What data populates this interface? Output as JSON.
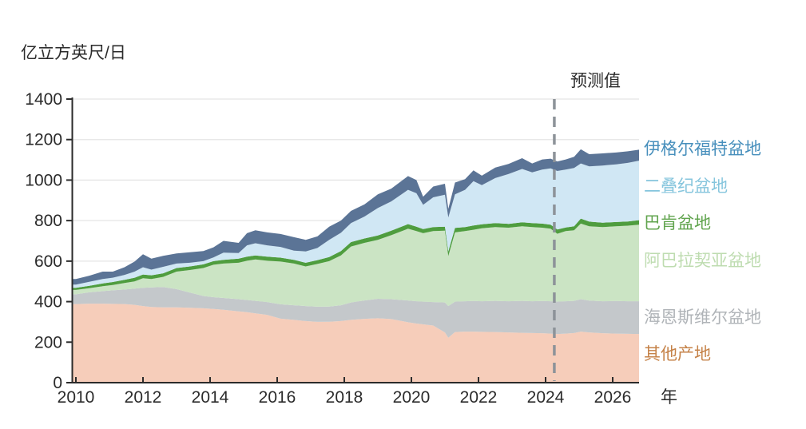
{
  "unit_label": "亿立方英尺/日",
  "forecast_label": "预测值",
  "x_axis_label": "年",
  "colors": {
    "axis": "#2b2b2b",
    "grid": "#e5e5e5",
    "forecast_line": "#8d9399",
    "background": "#ffffff"
  },
  "chart_data": {
    "type": "area",
    "stacked": true,
    "title": "",
    "unit_label": "亿立方英尺/日",
    "xlabel": "年",
    "ylabel": "",
    "ylim": [
      0,
      1400
    ],
    "yticks": [
      0,
      200,
      400,
      600,
      800,
      1000,
      1200,
      1400
    ],
    "xticks": [
      2010,
      2012,
      2014,
      2016,
      2018,
      2020,
      2022,
      2024,
      2026
    ],
    "xlim": [
      2009.88,
      2026.8
    ],
    "grid": true,
    "legend_position": "right",
    "forecast_divider_x": 2024.26,
    "forecast_annotation": "预测值",
    "x": [
      2010.0,
      2010.4,
      2010.8,
      2011.1,
      2011.45,
      2011.75,
      2012.0,
      2012.25,
      2012.6,
      2013.0,
      2013.4,
      2013.8,
      2014.1,
      2014.4,
      2014.85,
      2015.1,
      2015.35,
      2015.7,
      2016.1,
      2016.5,
      2016.85,
      2017.2,
      2017.55,
      2017.9,
      2018.2,
      2018.6,
      2019.0,
      2019.4,
      2019.9,
      2020.15,
      2020.35,
      2020.65,
      2021.0,
      2021.1,
      2021.3,
      2021.6,
      2021.85,
      2022.1,
      2022.5,
      2022.9,
      2023.3,
      2023.6,
      2023.9,
      2024.15,
      2024.35,
      2024.6,
      2024.85,
      2025.05,
      2025.3,
      2025.7,
      2026.1,
      2026.45,
      2026.8
    ],
    "series": [
      {
        "id": "other",
        "name": "其他产地",
        "color": "#f6cdba",
        "label_color": "#c58248",
        "legend_top": 432,
        "values": [
          388,
          390,
          390,
          389,
          388,
          384,
          378,
          374,
          372,
          372,
          370,
          367,
          364,
          360,
          352,
          348,
          342,
          335,
          316,
          310,
          304,
          300,
          301,
          304,
          310,
          315,
          318,
          314,
          298,
          292,
          288,
          282,
          248,
          222,
          250,
          252,
          252,
          251,
          250,
          248,
          246,
          245,
          244,
          242,
          240,
          242,
          245,
          252,
          248,
          244,
          242,
          241,
          240
        ]
      },
      {
        "id": "haynesville",
        "name": "海恩斯维尔盆地",
        "color": "#c4c8cb",
        "label_color": "#b0b4b8",
        "legend_top": 386,
        "values": [
          48,
          56,
          62,
          67,
          72,
          80,
          90,
          96,
          100,
          90,
          75,
          61,
          58,
          58,
          60,
          60,
          62,
          63,
          71,
          72,
          74,
          75,
          75,
          78,
          86,
          91,
          96,
          98,
          108,
          110,
          112,
          116,
          148,
          156,
          150,
          150,
          151,
          151,
          154,
          154,
          158,
          157,
          159,
          160,
          160,
          160,
          159,
          160,
          157,
          158,
          161,
          161,
          162
        ]
      },
      {
        "id": "appalachia",
        "name": "阿巴拉契亚盆地",
        "color": "#cbe4c4",
        "label_color": "#bedcb0",
        "legend_top": 315,
        "values": [
          22,
          20,
          24,
          26,
          32,
          36,
          48,
          42,
          50,
          86,
          111,
          138,
          160,
          170,
          180,
          194,
          204,
          204,
          211,
          206,
          196,
          211,
          224,
          246,
          276,
          284,
          291,
          316,
          354,
          346,
          338,
          350,
          354,
          247,
          342,
          346,
          352,
          360,
          364,
          363,
          368,
          366,
          362,
          358,
          335,
          346,
          348,
          373,
          367,
          366,
          369,
          373,
          378
        ]
      },
      {
        "id": "bakken",
        "name": "巴肯盆地",
        "color": "#4f9d3f",
        "label_color": "#61a44e",
        "legend_top": 268,
        "values": [
          10,
          12,
          14,
          15,
          16,
          18,
          18,
          18,
          18,
          18,
          18,
          18,
          18,
          18,
          20,
          20,
          20,
          20,
          19,
          18,
          18,
          19,
          20,
          22,
          22,
          22,
          22,
          22,
          23,
          22,
          20,
          20,
          20,
          23,
          22,
          20,
          21,
          20,
          20,
          19,
          20,
          20,
          20,
          20,
          21,
          18,
          20,
          25,
          23,
          22,
          21,
          21,
          22
        ]
      },
      {
        "id": "permian",
        "name": "二叠纪盆地",
        "color": "#d0e7f4",
        "label_color": "#85c5dd",
        "legend_top": 222,
        "values": [
          16,
          20,
          22,
          21,
          24,
          30,
          36,
          28,
          32,
          22,
          18,
          16,
          18,
          36,
          28,
          56,
          60,
          56,
          53,
          46,
          56,
          60,
          85,
          90,
          94,
          108,
          135,
          145,
          169,
          165,
          120,
          147,
          158,
          167,
          166,
          184,
          219,
          193,
          222,
          246,
          263,
          250,
          267,
          278,
          289,
          286,
          288,
          272,
          273,
          282,
          285,
          289,
          294
        ]
      },
      {
        "id": "eagle-ford",
        "name": "伊格尔福特盆地",
        "color": "#5b7496",
        "label_color": "#478fbc",
        "legend_top": 175,
        "values": [
          28,
          30,
          36,
          30,
          38,
          50,
          64,
          54,
          54,
          50,
          52,
          50,
          50,
          58,
          50,
          60,
          64,
          64,
          64,
          66,
          57,
          57,
          65,
          60,
          60,
          60,
          68,
          63,
          68,
          65,
          40,
          53,
          54,
          43,
          58,
          53,
          53,
          47,
          52,
          50,
          53,
          44,
          50,
          48,
          47,
          50,
          55,
          70,
          60,
          60,
          58,
          57,
          54
        ]
      }
    ]
  }
}
